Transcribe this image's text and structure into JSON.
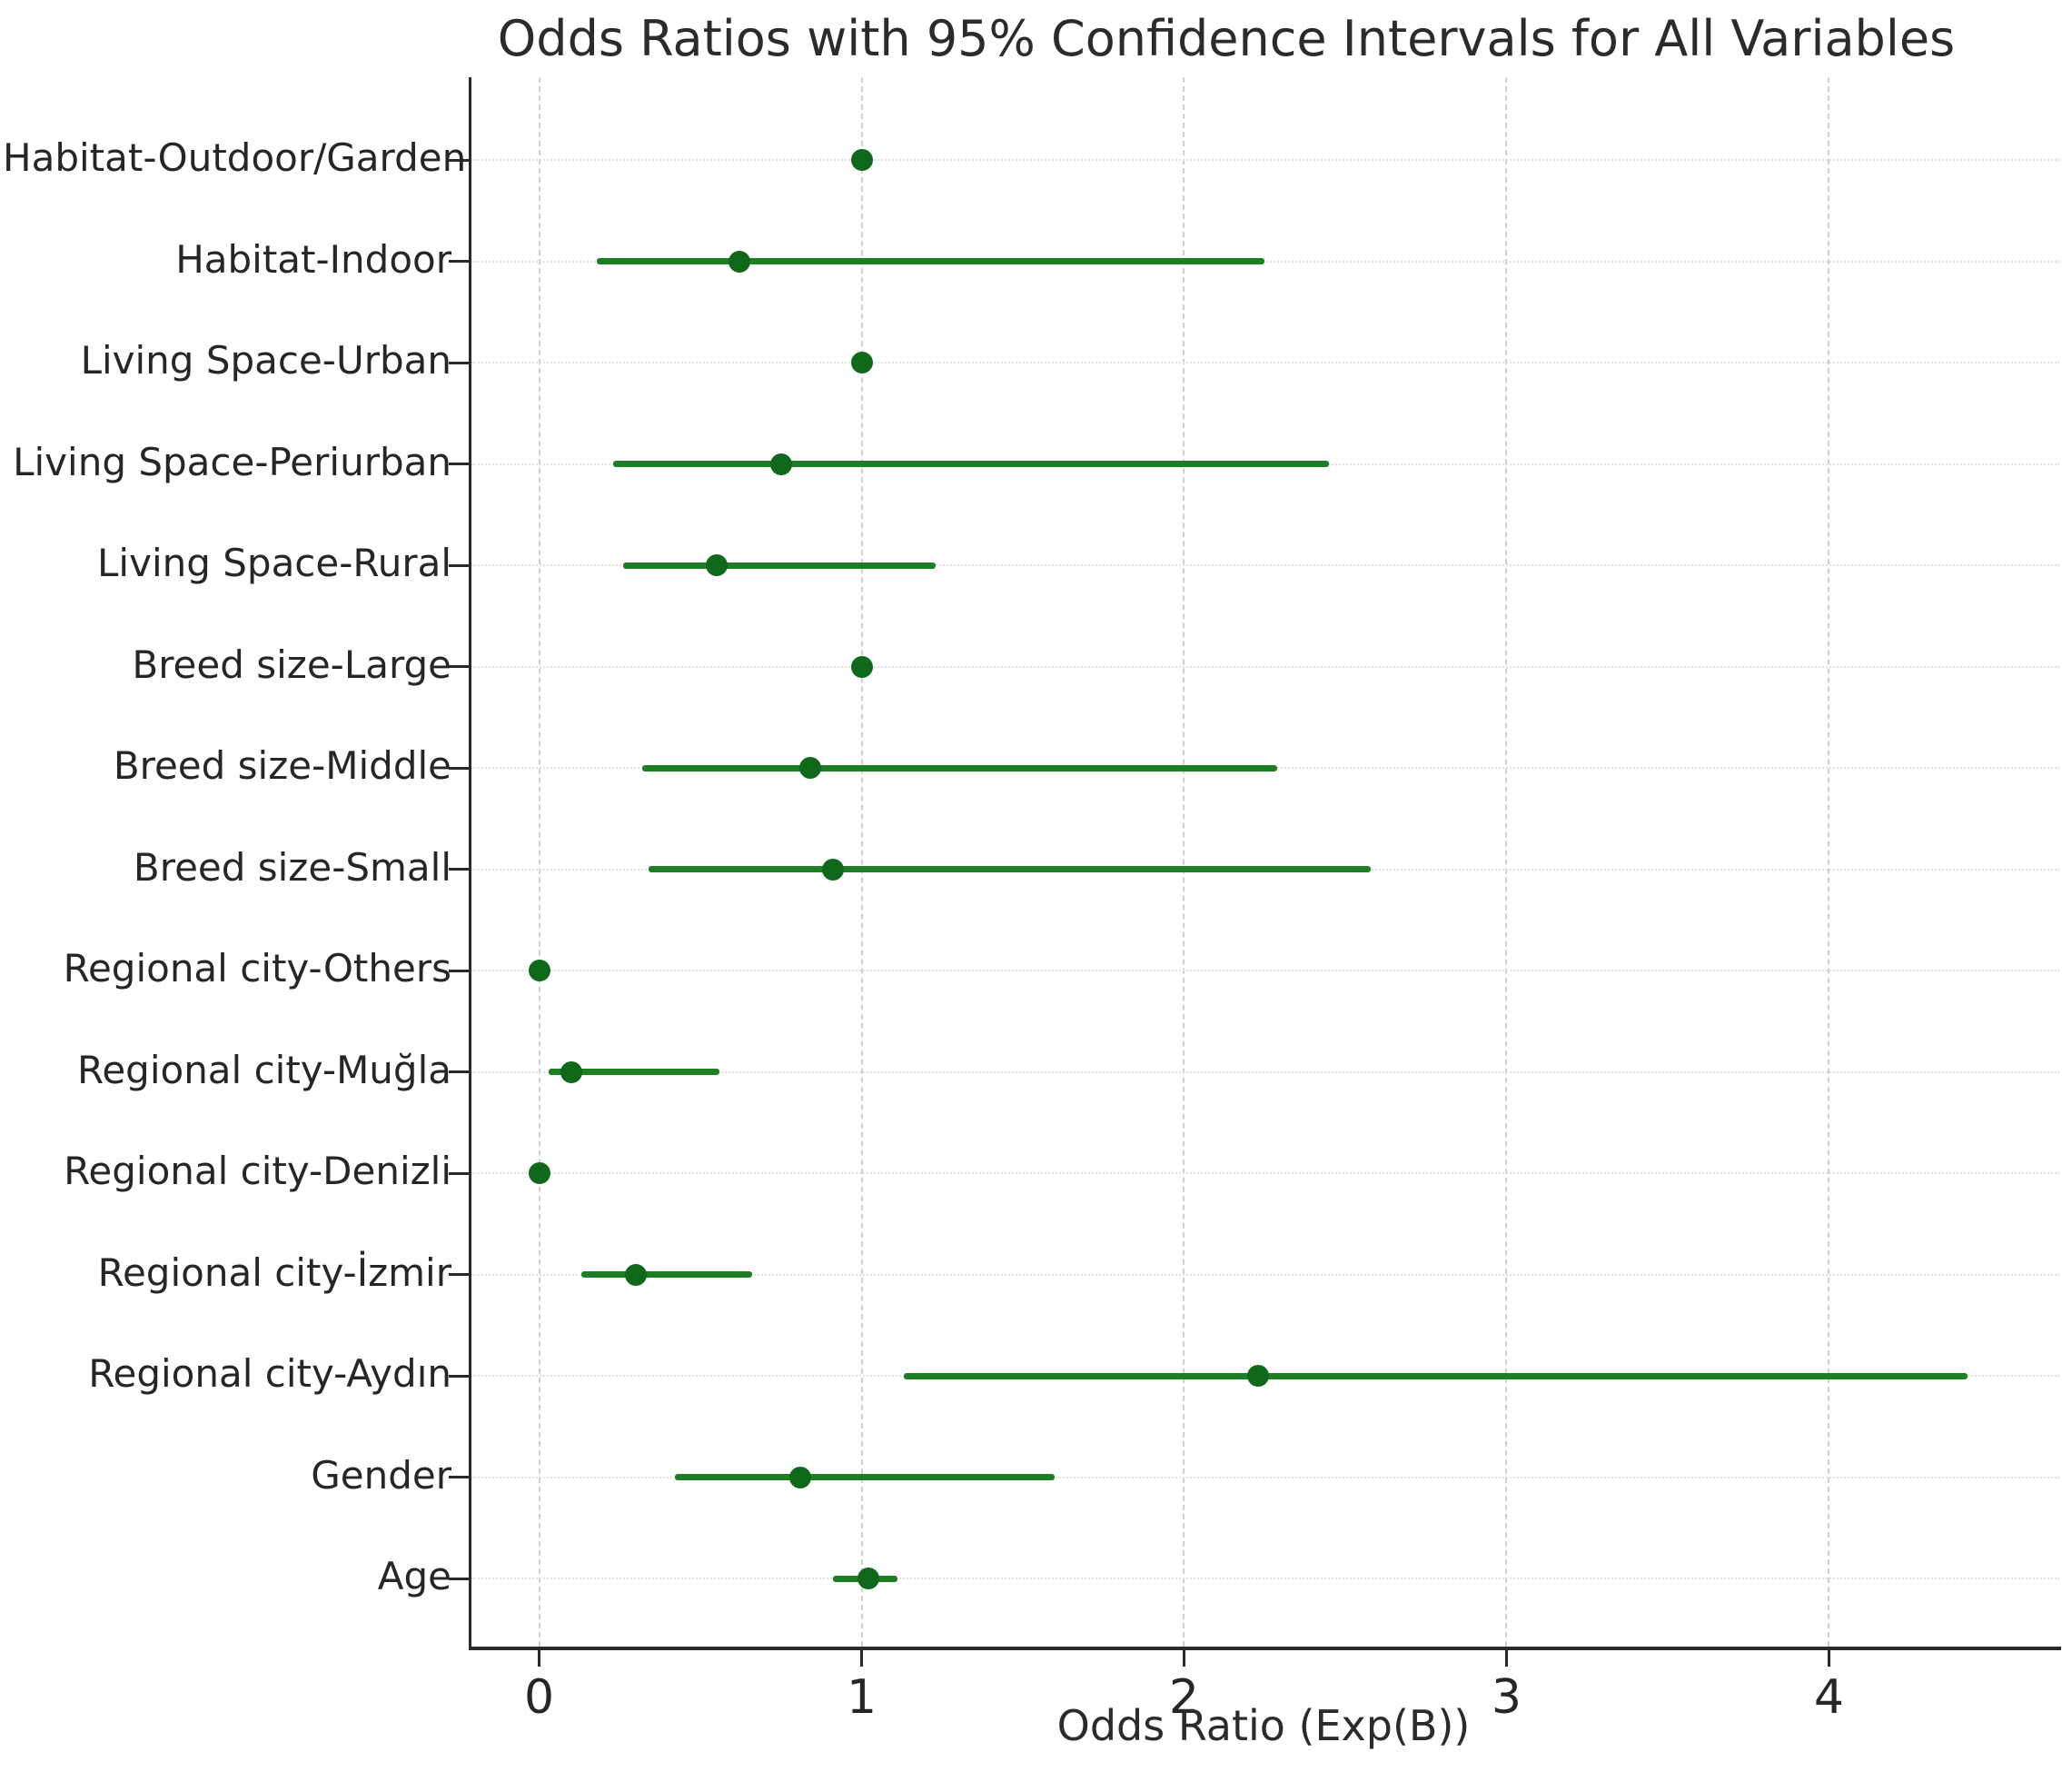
{
  "chart_data": {
    "type": "scatter",
    "subtype": "forest-plot-horizontal",
    "title": "Odds Ratios with 95% Confidence Intervals for All Variables",
    "xlabel": "Odds Ratio (Exp(B))",
    "ylabel": "",
    "x_ticks": [
      0,
      1,
      2,
      3,
      4
    ],
    "xlim": [
      -0.21,
      4.72
    ],
    "grid": true,
    "legend": false,
    "marker_color": "#10691a",
    "ci_line_color": "#1e7e23",
    "axis_color": "#2a2a2a",
    "gridline_color": "#cfcfcf",
    "background_color": "#ffffff",
    "rows": [
      {
        "label": "Habitat-Outdoor/Garden",
        "or": 1.0,
        "ci_low": 1.0,
        "ci_high": 1.0
      },
      {
        "label": "Habitat-Indoor",
        "or": 0.62,
        "ci_low": 0.18,
        "ci_high": 2.25
      },
      {
        "label": "Living Space-Urban",
        "or": 1.0,
        "ci_low": 1.0,
        "ci_high": 1.0
      },
      {
        "label": "Living Space-Periurban",
        "or": 0.75,
        "ci_low": 0.23,
        "ci_high": 2.45
      },
      {
        "label": "Living Space-Rural",
        "or": 0.55,
        "ci_low": 0.26,
        "ci_high": 1.23
      },
      {
        "label": "Breed size-Large",
        "or": 1.0,
        "ci_low": 1.0,
        "ci_high": 1.0
      },
      {
        "label": "Breed size-Middle",
        "or": 0.84,
        "ci_low": 0.32,
        "ci_high": 2.29
      },
      {
        "label": "Breed size-Small",
        "or": 0.91,
        "ci_low": 0.34,
        "ci_high": 2.58
      },
      {
        "label": "Regional city-Others",
        "or": 0.0,
        "ci_low": 0.0,
        "ci_high": 0.0
      },
      {
        "label": "Regional city-Muğla",
        "or": 0.1,
        "ci_low": 0.03,
        "ci_high": 0.56
      },
      {
        "label": "Regional city-Denizli",
        "or": 0.0,
        "ci_low": 0.0,
        "ci_high": 0.0
      },
      {
        "label": "Regional city-İzmir",
        "or": 0.3,
        "ci_low": 0.13,
        "ci_high": 0.66
      },
      {
        "label": "Regional city-Aydın",
        "or": 2.23,
        "ci_low": 1.13,
        "ci_high": 4.43
      },
      {
        "label": "Gender",
        "or": 0.81,
        "ci_low": 0.42,
        "ci_high": 1.6
      },
      {
        "label": "Age",
        "or": 1.02,
        "ci_low": 0.91,
        "ci_high": 1.11
      }
    ]
  }
}
